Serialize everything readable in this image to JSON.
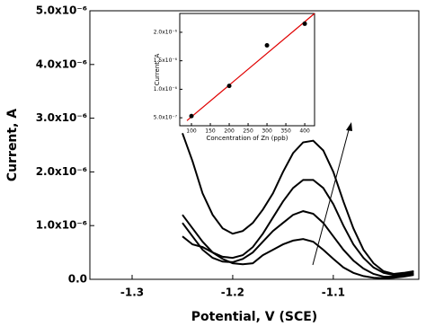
{
  "chart_data": [
    {
      "type": "line",
      "x_label": "Potential, V (SCE)",
      "y_label": "Current, A",
      "x": [
        -1.25,
        -1.24,
        -1.23,
        -1.22,
        -1.21,
        -1.2,
        -1.19,
        -1.18,
        -1.17,
        -1.16,
        -1.15,
        -1.14,
        -1.13,
        -1.12,
        -1.11,
        -1.1,
        -1.09,
        -1.08,
        -1.07,
        -1.06,
        -1.05,
        -1.04,
        -1.03,
        -1.02
      ],
      "series": [
        {
          "color": "#000000",
          "values": [
            2.72e-06,
            2.2e-06,
            1.6e-06,
            1.2e-06,
            9.5e-07,
            8.5e-07,
            9e-07,
            1.05e-06,
            1.3e-06,
            1.6e-06,
            2e-06,
            2.35e-06,
            2.55e-06,
            2.58e-06,
            2.4e-06,
            2e-06,
            1.45e-06,
            9.5e-07,
            5.5e-07,
            3e-07,
            1.5e-07,
            1e-07,
            1.2e-07,
            1.5e-07
          ]
        },
        {
          "color": "#000000",
          "values": [
            1.2e-06,
            9.5e-07,
            7e-07,
            5e-07,
            4.2e-07,
            4e-07,
            4.5e-07,
            6e-07,
            8.5e-07,
            1.15e-06,
            1.45e-06,
            1.7e-06,
            1.85e-06,
            1.85e-06,
            1.7e-06,
            1.4e-06,
            1e-06,
            6.5e-07,
            4e-07,
            2.2e-07,
            1.2e-07,
            8e-08,
            1e-07,
            1.2e-07
          ]
        },
        {
          "color": "#000000",
          "values": [
            1.05e-06,
            8e-07,
            5.5e-07,
            4e-07,
            3.3e-07,
            3.2e-07,
            3.8e-07,
            5e-07,
            7e-07,
            9e-07,
            1.05e-06,
            1.2e-06,
            1.27e-06,
            1.22e-06,
            1.05e-06,
            8e-07,
            5.5e-07,
            3.5e-07,
            2e-07,
            1e-07,
            5e-08,
            5e-08,
            8e-08,
            1e-07
          ]
        },
        {
          "color": "#000000",
          "values": [
            8e-07,
            6.5e-07,
            6e-07,
            5e-07,
            3.8e-07,
            3e-07,
            2.8e-07,
            3e-07,
            4.5e-07,
            5.5e-07,
            6.5e-07,
            7.2e-07,
            7.5e-07,
            7e-07,
            5.5e-07,
            3.8e-07,
            2.2e-07,
            1.2e-07,
            6e-08,
            3e-08,
            2e-08,
            3e-08,
            5e-08,
            8e-08
          ]
        }
      ],
      "xlim": [
        -1.342,
        -1.015
      ],
      "xticks": [
        -1.3,
        -1.2,
        -1.1
      ],
      "ylim": [
        0,
        5e-06
      ],
      "yticks": [
        {
          "value": 0,
          "label": "0.0"
        },
        {
          "value": 1e-06,
          "label": "1.0x10⁻⁶"
        },
        {
          "value": 2e-06,
          "label": "2.0x10⁻⁶"
        },
        {
          "value": 3e-06,
          "label": "3.0x10⁻⁶"
        },
        {
          "value": 4e-06,
          "label": "4.0x10⁻⁶"
        },
        {
          "value": 5e-06,
          "label": "5.0x10⁻⁶"
        }
      ]
    },
    {
      "type": "scatter",
      "x_label": "Concentration of Zn (ppb)",
      "y_label": "Current, A",
      "x": [
        100,
        200,
        300,
        400
      ],
      "values": [
        5.3e-07,
        1.06e-06,
        1.77e-06,
        2.15e-06
      ],
      "color": "#000000",
      "fit": {
        "x": [
          88,
          426
        ],
        "values": [
          4.5e-07,
          2.33e-06
        ],
        "color": "#e00000"
      },
      "xlim": [
        69,
        426
      ],
      "xticks": [
        100,
        150,
        200,
        250,
        300,
        350,
        400
      ],
      "ylim": [
        3.6e-07,
        2.33e-06
      ],
      "yticks": [
        {
          "value": 5e-07,
          "label": "5.0x10⁻⁷"
        },
        {
          "value": 1e-06,
          "label": "1.0x10⁻⁶"
        },
        {
          "value": 1.5e-06,
          "label": "1.5x10⁻⁶"
        },
        {
          "value": 2e-06,
          "label": "2.0x10⁻⁶"
        }
      ]
    }
  ]
}
